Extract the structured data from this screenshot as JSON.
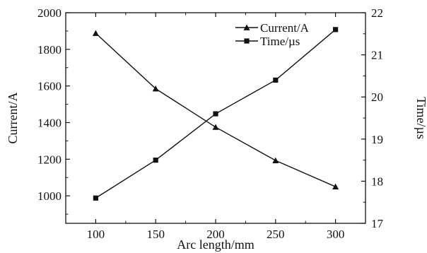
{
  "chart_data": {
    "type": "line",
    "x": [
      100,
      150,
      200,
      250,
      300
    ],
    "xlabel": "Arc length/mm",
    "xlim": [
      75,
      325
    ],
    "xticks": [
      100,
      150,
      200,
      250,
      300
    ],
    "y_left": {
      "label": "Current/A",
      "lim": [
        850,
        2000
      ],
      "ticks": [
        1000,
        1200,
        1400,
        1600,
        1800,
        2000
      ]
    },
    "y_right": {
      "label": "Time/µs",
      "lim": [
        17,
        22
      ],
      "ticks": [
        17,
        18,
        19,
        20,
        21,
        22
      ]
    },
    "series": [
      {
        "name": "Current/A",
        "axis": "left",
        "marker": "triangle",
        "values": [
          1888,
          1585,
          1375,
          1193,
          1050
        ]
      },
      {
        "name": "Time/µs",
        "axis": "right",
        "marker": "square",
        "values": [
          17.6,
          18.5,
          19.6,
          20.4,
          21.6
        ]
      }
    ],
    "legend": "top-right",
    "grid": false,
    "colors": {
      "line": "#111111",
      "background": "#ffffff"
    }
  }
}
